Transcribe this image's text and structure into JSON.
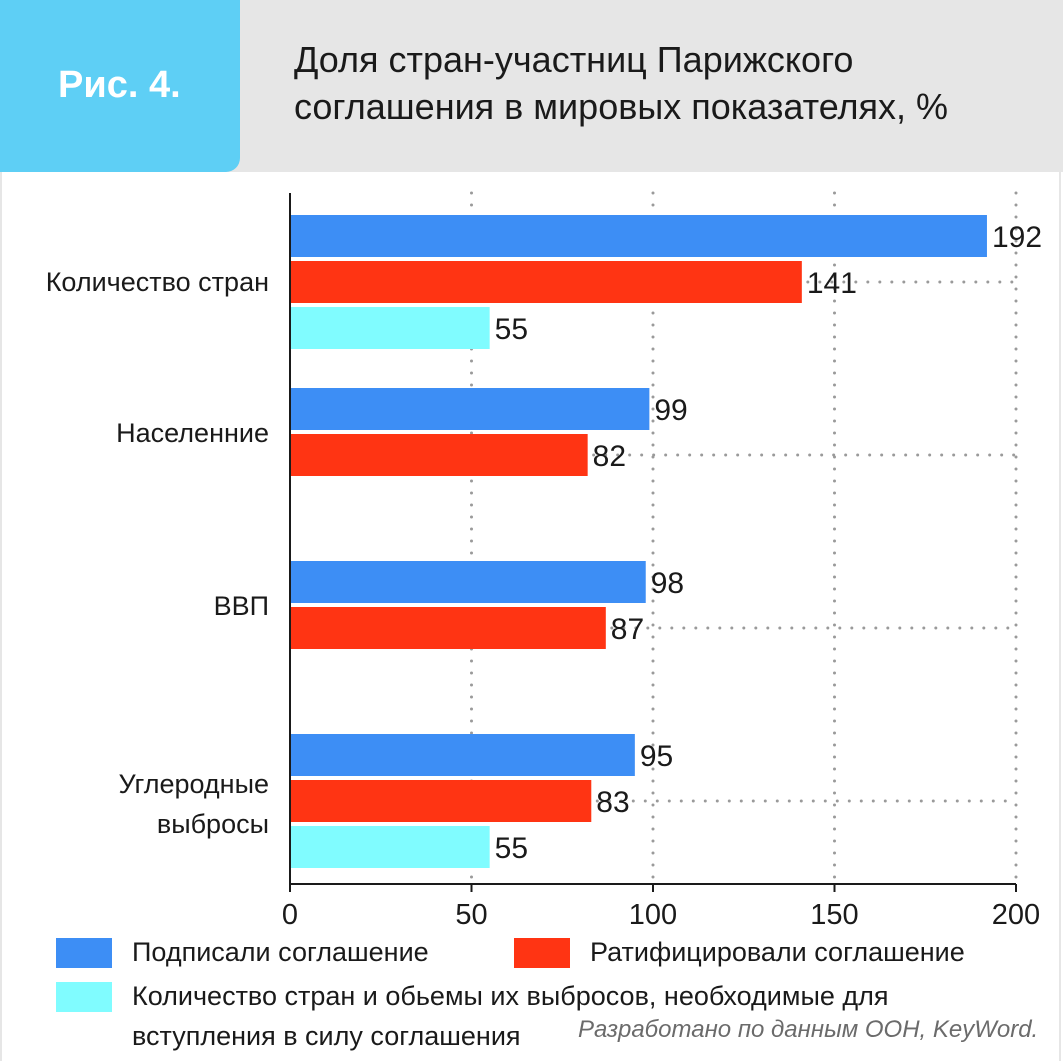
{
  "figure": {
    "badge": "Рис. 4.",
    "title": "Доля стран-участниц Парижского соглашения в мировых показателях, %",
    "source": "Разработано по данным ООН, KeyWord."
  },
  "colors": {
    "signed": "#3d8ef5",
    "ratified": "#ff3413",
    "required": "#80fcff",
    "badge": "#5ecff5",
    "header": "#e6e6e6"
  },
  "chart_data": {
    "type": "bar",
    "orientation": "horizontal",
    "title": "Доля стран-участниц Парижского соглашения в мировых показателях, %",
    "categories": [
      "Количество стран",
      "Населенние",
      "ВВП",
      "Углеродные выбросы"
    ],
    "series": [
      {
        "name": "Подписали соглашение",
        "values": [
          192,
          99,
          98,
          95
        ]
      },
      {
        "name": "Ратифицировали соглашение",
        "values": [
          141,
          82,
          87,
          83
        ]
      },
      {
        "name": "Количество стран и обьемы их выбросов, необходимые для вступления в силу соглашения",
        "values": [
          55,
          null,
          null,
          55
        ]
      }
    ],
    "xlim": [
      0,
      200
    ],
    "xticks": [
      0,
      50,
      100,
      150,
      200
    ],
    "grid": "dotted vertical at ticks",
    "legend": "bottom"
  }
}
